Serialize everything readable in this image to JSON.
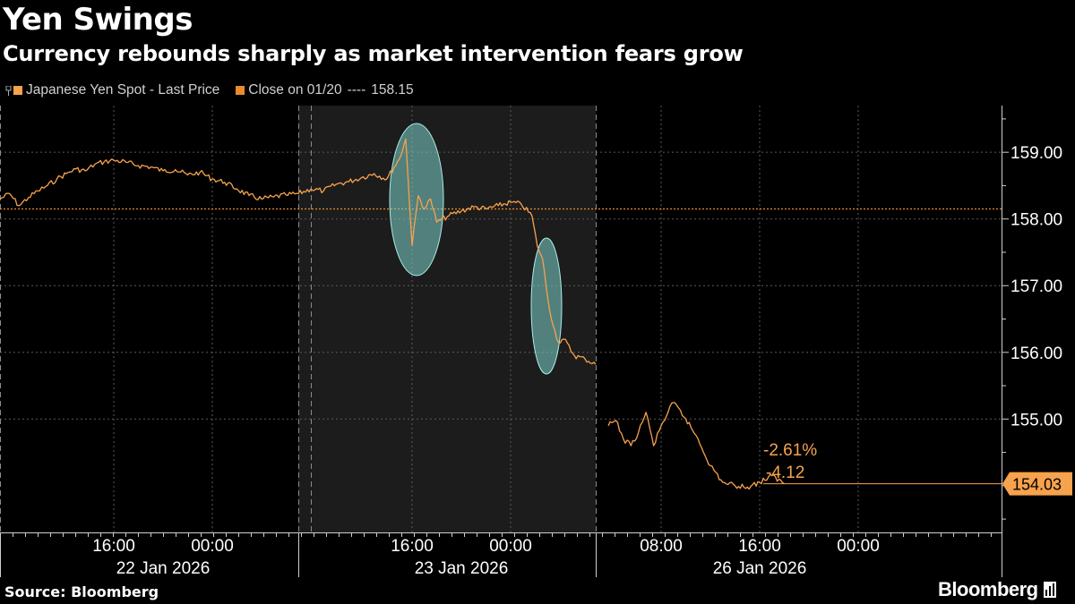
{
  "header": {
    "title": "Yen Swings",
    "subtitle": "Currency rebounds sharply as market intervention fears grow"
  },
  "legend": {
    "series_label": "Japanese Yen Spot - Last Price",
    "close_label": "Close on 01/20",
    "close_dashes": "----",
    "close_value": "158.15"
  },
  "footer": {
    "source": "Source: Bloomberg",
    "brand": "Bloomberg"
  },
  "colors": {
    "background": "#000000",
    "shade": "#1c1c1c",
    "line": "#f7a24d",
    "close_line": "#e88a2e",
    "highlight_ellipse": "#7fd3cc"
  },
  "chart_data": {
    "type": "line",
    "title": "Yen Swings",
    "subtitle": "Currency rebounds sharply as market intervention fears grow",
    "ylim": [
      153.3,
      159.7
    ],
    "y_ticks": [
      "159.00",
      "158.00",
      "157.00",
      "156.00",
      "155.00"
    ],
    "y_tick_values": [
      159,
      158,
      157,
      156,
      155
    ],
    "x_range": [
      "2026-01-22T04:00",
      "2026-01-27T06:00"
    ],
    "x_ticks": [
      "16:00",
      "00:00",
      "16:00",
      "00:00",
      "08:00",
      "16:00",
      "00:00"
    ],
    "x_tick_values": [
      "2026-01-22T16:00",
      "2026-01-23T00:00",
      "2026-01-23T16:00",
      "2026-01-24T00:00",
      "2026-01-26T08:00",
      "2026-01-26T16:00",
      "2026-01-27T00:00"
    ],
    "date_labels": [
      "22 Jan 2026",
      "23 Jan 2026",
      "26 Jan 2026"
    ],
    "date_label_positions": [
      "2026-01-22T20:00",
      "2026-01-23T20:00",
      "2026-01-26T16:00"
    ],
    "reference_line": {
      "label": "Close on 01/20",
      "value": 158.15
    },
    "last_value": "154.03",
    "annotations": [
      "-2.61%",
      "-4.12"
    ],
    "shaded_day": "23 Jan 2026",
    "highlights": [
      "2026-01-23T16:00",
      "2026-01-24T03:00"
    ],
    "series": [
      {
        "name": "Japanese Yen Spot - Last Price",
        "points": [
          [
            "2026-01-22T04:00",
            158.3
          ],
          [
            "2026-01-22T05:00",
            158.38
          ],
          [
            "2026-01-22T06:00",
            158.2
          ],
          [
            "2026-01-22T07:00",
            158.32
          ],
          [
            "2026-01-22T08:00",
            158.42
          ],
          [
            "2026-01-22T09:00",
            158.5
          ],
          [
            "2026-01-22T10:00",
            158.6
          ],
          [
            "2026-01-22T11:00",
            158.68
          ],
          [
            "2026-01-22T12:00",
            158.75
          ],
          [
            "2026-01-22T13:00",
            158.72
          ],
          [
            "2026-01-22T14:00",
            158.82
          ],
          [
            "2026-01-22T15:00",
            158.86
          ],
          [
            "2026-01-22T16:00",
            158.88
          ],
          [
            "2026-01-22T17:00",
            158.85
          ],
          [
            "2026-01-22T18:00",
            158.8
          ],
          [
            "2026-01-22T19:00",
            158.78
          ],
          [
            "2026-01-22T20:00",
            158.72
          ],
          [
            "2026-01-22T21:00",
            158.74
          ],
          [
            "2026-01-22T22:00",
            158.66
          ],
          [
            "2026-01-22T23:00",
            158.7
          ],
          [
            "2026-01-23T00:00",
            158.6
          ],
          [
            "2026-01-23T01:00",
            158.55
          ],
          [
            "2026-01-23T02:00",
            158.45
          ],
          [
            "2026-01-23T03:00",
            158.35
          ],
          [
            "2026-01-23T04:00",
            158.3
          ],
          [
            "2026-01-23T05:00",
            158.33
          ],
          [
            "2026-01-23T06:00",
            158.36
          ],
          [
            "2026-01-23T07:00",
            158.38
          ],
          [
            "2026-01-23T08:00",
            158.45
          ],
          [
            "2026-01-23T09:00",
            158.42
          ],
          [
            "2026-01-23T10:00",
            158.52
          ],
          [
            "2026-01-23T11:00",
            158.56
          ],
          [
            "2026-01-23T12:00",
            158.62
          ],
          [
            "2026-01-23T13:00",
            158.68
          ],
          [
            "2026-01-23T14:00",
            158.6
          ],
          [
            "2026-01-23T15:00",
            158.9
          ],
          [
            "2026-01-23T15:30",
            159.2
          ],
          [
            "2026-01-23T16:00",
            157.6
          ],
          [
            "2026-01-23T16:30",
            158.35
          ],
          [
            "2026-01-23T17:00",
            158.15
          ],
          [
            "2026-01-23T17:30",
            158.3
          ],
          [
            "2026-01-23T18:00",
            157.95
          ],
          [
            "2026-01-23T19:00",
            158.05
          ],
          [
            "2026-01-23T20:00",
            158.12
          ],
          [
            "2026-01-23T21:00",
            158.18
          ],
          [
            "2026-01-23T22:00",
            158.15
          ],
          [
            "2026-01-23T23:00",
            158.2
          ],
          [
            "2026-01-24T00:00",
            158.25
          ],
          [
            "2026-01-24T01:00",
            158.22
          ],
          [
            "2026-01-24T02:00",
            158.05
          ],
          [
            "2026-01-24T02:30",
            157.6
          ],
          [
            "2026-01-24T03:00",
            157.4
          ],
          [
            "2026-01-24T03:30",
            156.8
          ],
          [
            "2026-01-24T04:00",
            156.4
          ],
          [
            "2026-01-24T04:30",
            156.15
          ],
          [
            "2026-01-24T05:00",
            156.2
          ],
          [
            "2026-01-24T06:00",
            155.95
          ],
          [
            "2026-01-24T07:00",
            155.9
          ],
          [
            "2026-01-24T08:00",
            155.82
          ],
          [
            "2026-01-26T01:00",
            154.9
          ],
          [
            "2026-01-26T02:00",
            154.98
          ],
          [
            "2026-01-26T03:00",
            154.7
          ],
          [
            "2026-01-26T04:00",
            154.6
          ],
          [
            "2026-01-26T05:00",
            154.8
          ],
          [
            "2026-01-26T06:00",
            155.1
          ],
          [
            "2026-01-26T07:00",
            154.6
          ],
          [
            "2026-01-26T08:00",
            154.9
          ],
          [
            "2026-01-26T09:00",
            155.25
          ],
          [
            "2026-01-26T10:00",
            155.0
          ],
          [
            "2026-01-26T11:00",
            154.7
          ],
          [
            "2026-01-26T12:00",
            154.3
          ],
          [
            "2026-01-26T13:00",
            154.05
          ],
          [
            "2026-01-26T14:00",
            154.0
          ],
          [
            "2026-01-26T15:00",
            153.98
          ],
          [
            "2026-01-26T16:00",
            154.05
          ],
          [
            "2026-01-26T17:00",
            154.15
          ],
          [
            "2026-01-26T18:00",
            154.03
          ]
        ]
      }
    ]
  }
}
